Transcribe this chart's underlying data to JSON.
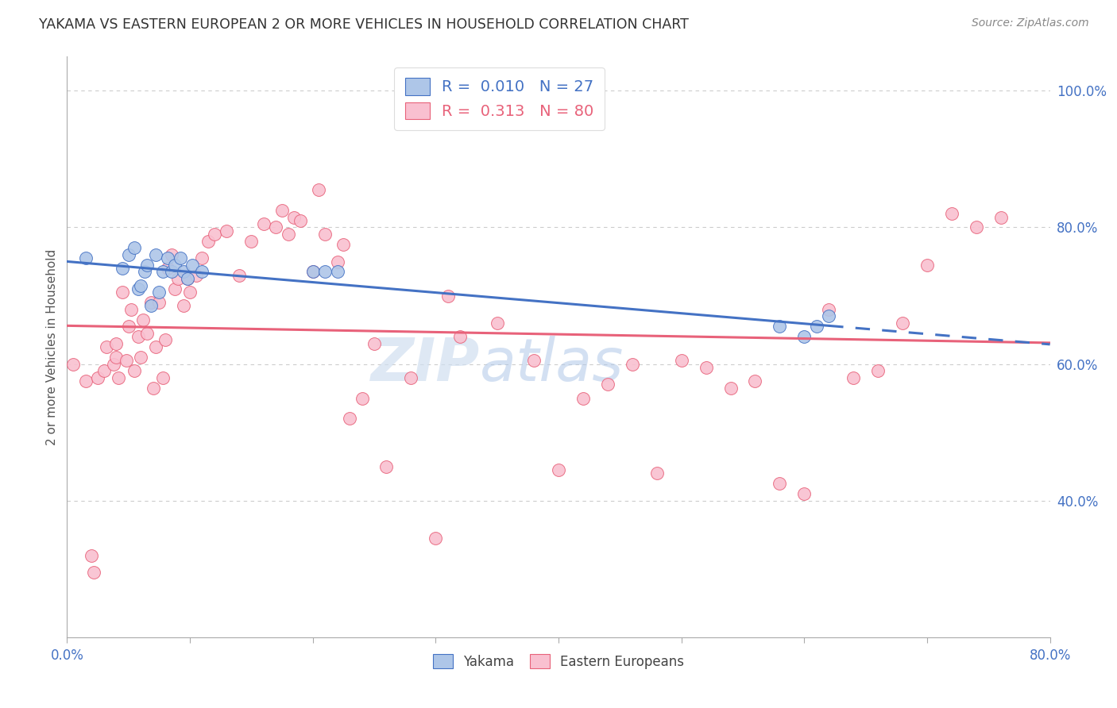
{
  "title": "YAKAMA VS EASTERN EUROPEAN 2 OR MORE VEHICLES IN HOUSEHOLD CORRELATION CHART",
  "source": "Source: ZipAtlas.com",
  "ylabel": "2 or more Vehicles in Household",
  "xmin": 0.0,
  "xmax": 0.8,
  "ymin": 0.2,
  "ymax": 1.05,
  "x_tick_positions": [
    0.0,
    0.1,
    0.2,
    0.3,
    0.4,
    0.5,
    0.6,
    0.7,
    0.8
  ],
  "x_tick_labels": [
    "0.0%",
    "",
    "",
    "",
    "",
    "",
    "",
    "",
    "80.0%"
  ],
  "y_tick_right": [
    0.4,
    0.6,
    0.8,
    1.0
  ],
  "y_tick_right_labels": [
    "40.0%",
    "60.0%",
    "80.0%",
    "100.0%"
  ],
  "yakama_color": "#aec6e8",
  "eastern_color": "#f9c0d0",
  "trendline_yakama_color": "#4472c4",
  "trendline_eastern_color": "#e8627a",
  "watermark_zip": "ZIP",
  "watermark_atlas": "atlas",
  "legend_r_yakama": "R =  0.010",
  "legend_n_yakama": "N = 27",
  "legend_r_eastern": "R =  0.313",
  "legend_n_eastern": "N = 80",
  "yakama_x": [
    0.015,
    0.045,
    0.05,
    0.055,
    0.058,
    0.06,
    0.063,
    0.065,
    0.068,
    0.072,
    0.075,
    0.078,
    0.082,
    0.085,
    0.088,
    0.092,
    0.095,
    0.098,
    0.102,
    0.11,
    0.2,
    0.21,
    0.22,
    0.58,
    0.6,
    0.61,
    0.62
  ],
  "yakama_y": [
    0.755,
    0.74,
    0.76,
    0.77,
    0.71,
    0.715,
    0.735,
    0.745,
    0.685,
    0.76,
    0.705,
    0.735,
    0.755,
    0.735,
    0.745,
    0.755,
    0.735,
    0.725,
    0.745,
    0.735,
    0.735,
    0.735,
    0.735,
    0.655,
    0.64,
    0.655,
    0.67
  ],
  "eastern_x": [
    0.005,
    0.015,
    0.02,
    0.022,
    0.025,
    0.03,
    0.032,
    0.038,
    0.04,
    0.04,
    0.042,
    0.045,
    0.048,
    0.05,
    0.052,
    0.055,
    0.058,
    0.06,
    0.062,
    0.065,
    0.068,
    0.07,
    0.072,
    0.075,
    0.078,
    0.08,
    0.082,
    0.085,
    0.088,
    0.09,
    0.095,
    0.098,
    0.1,
    0.105,
    0.11,
    0.115,
    0.12,
    0.13,
    0.14,
    0.15,
    0.16,
    0.17,
    0.175,
    0.18,
    0.185,
    0.19,
    0.2,
    0.205,
    0.21,
    0.22,
    0.225,
    0.23,
    0.24,
    0.25,
    0.26,
    0.28,
    0.3,
    0.31,
    0.32,
    0.35,
    0.38,
    0.4,
    0.42,
    0.44,
    0.46,
    0.48,
    0.5,
    0.52,
    0.54,
    0.56,
    0.58,
    0.6,
    0.62,
    0.64,
    0.66,
    0.68,
    0.7,
    0.72,
    0.74,
    0.76
  ],
  "eastern_y": [
    0.6,
    0.575,
    0.32,
    0.295,
    0.58,
    0.59,
    0.625,
    0.6,
    0.61,
    0.63,
    0.58,
    0.705,
    0.605,
    0.655,
    0.68,
    0.59,
    0.64,
    0.61,
    0.665,
    0.645,
    0.69,
    0.565,
    0.625,
    0.69,
    0.58,
    0.635,
    0.74,
    0.76,
    0.71,
    0.725,
    0.685,
    0.725,
    0.705,
    0.73,
    0.755,
    0.78,
    0.79,
    0.795,
    0.73,
    0.78,
    0.805,
    0.8,
    0.825,
    0.79,
    0.815,
    0.81,
    0.735,
    0.855,
    0.79,
    0.75,
    0.775,
    0.52,
    0.55,
    0.63,
    0.45,
    0.58,
    0.345,
    0.7,
    0.64,
    0.66,
    0.605,
    0.445,
    0.55,
    0.57,
    0.6,
    0.44,
    0.605,
    0.595,
    0.565,
    0.575,
    0.425,
    0.41,
    0.68,
    0.58,
    0.59,
    0.66,
    0.745,
    0.82,
    0.8,
    0.815
  ]
}
